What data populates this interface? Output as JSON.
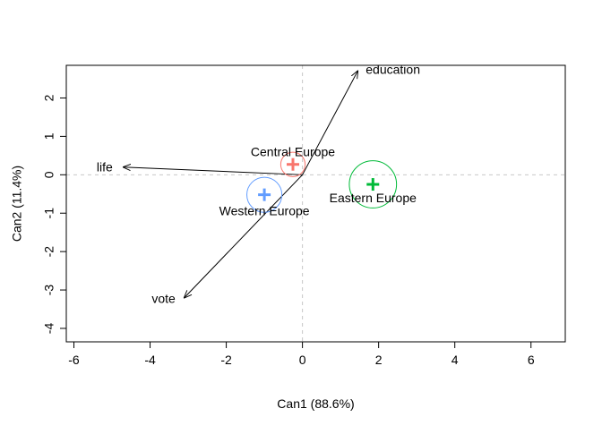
{
  "chart_data": {
    "type": "scatter",
    "title": "",
    "xlabel": "Can1 (88.6%)",
    "ylabel": "Can2 (11.4%)",
    "xlim": [
      -6.2,
      6.9
    ],
    "ylim": [
      -4.35,
      2.85
    ],
    "x_ticks": [
      -6,
      -4,
      -2,
      0,
      2,
      4,
      6
    ],
    "y_ticks": [
      -4,
      -3,
      -2,
      -1,
      0,
      1,
      2
    ],
    "x_tick_labels": [
      "-6",
      "-4",
      "-2",
      "0",
      "2",
      "4",
      "6"
    ],
    "y_tick_labels": [
      "-4",
      "-3",
      "-2",
      "-1",
      "0",
      "1",
      "2"
    ],
    "reference_lines": {
      "x": 0,
      "y": 0,
      "style": "dashed",
      "color": "#c8c8c8"
    },
    "groups": [
      {
        "name": "Central Europe",
        "x": -0.25,
        "y": 0.27,
        "radius": 0.32,
        "color": "#f8766d"
      },
      {
        "name": "Western Europe",
        "x": -1.0,
        "y": -0.52,
        "radius": 0.46,
        "color": "#619cff"
      },
      {
        "name": "Eastern Europe",
        "x": 1.85,
        "y": -0.25,
        "radius": 0.62,
        "color": "#00ba38"
      }
    ],
    "vectors": [
      {
        "name": "education",
        "x": 1.45,
        "y": 2.7
      },
      {
        "name": "life",
        "x": -4.7,
        "y": 0.2
      },
      {
        "name": "vote",
        "x": -3.1,
        "y": -3.2
      }
    ],
    "grid": false,
    "legend": "none"
  }
}
